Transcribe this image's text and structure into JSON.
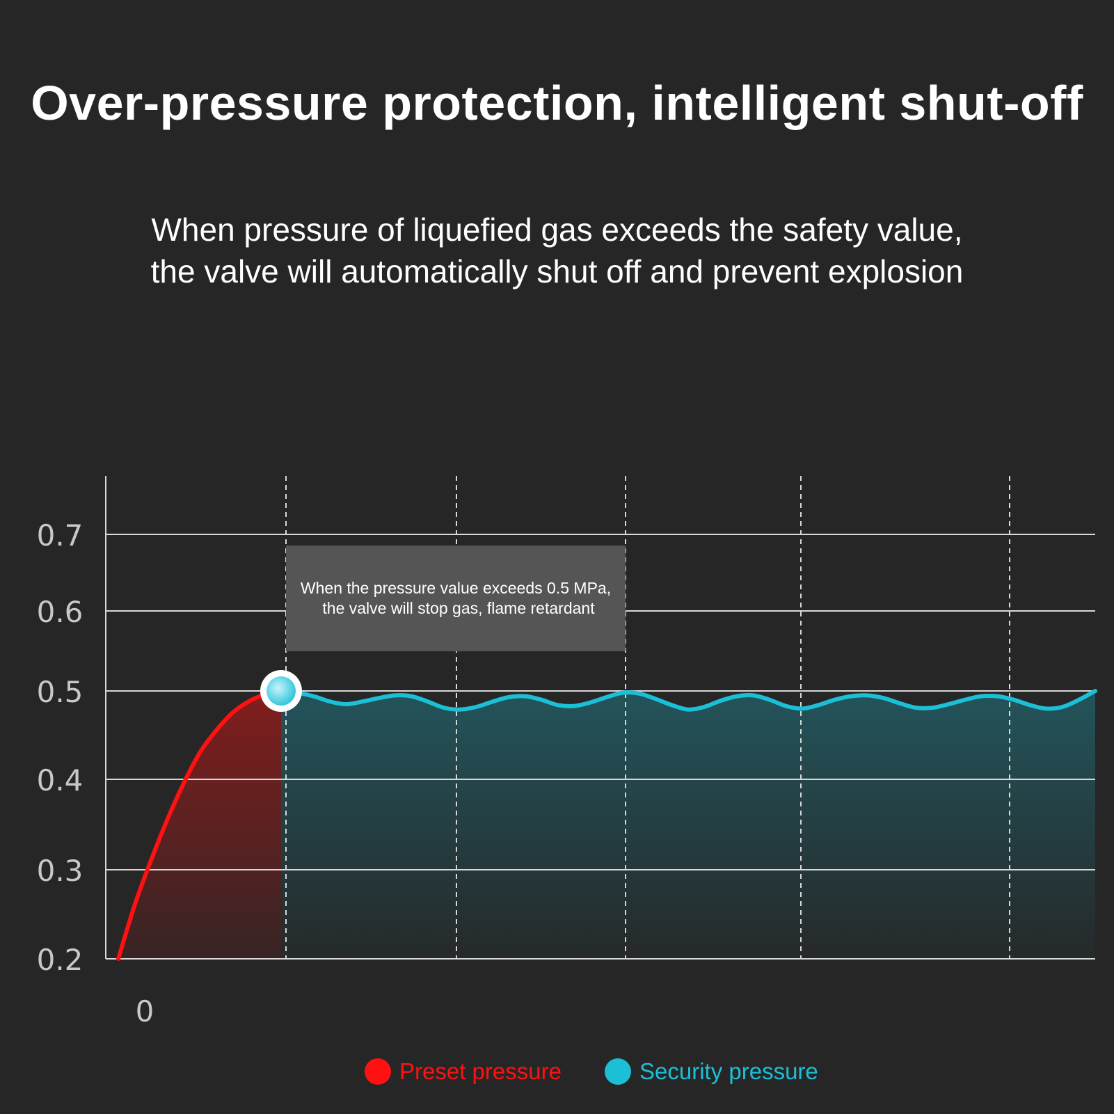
{
  "title": "Over-pressure protection, intelligent shut-off",
  "subtitle": {
    "line1": "When pressure of liquefied gas exceeds the safety value,",
    "line2": "the valve will automatically shut off and prevent explosion"
  },
  "colors": {
    "background": "#262626",
    "preset": "#ff1111",
    "security": "#1bbfd6",
    "annotation_bg": "#555555"
  },
  "chart_data": {
    "type": "line",
    "title": "",
    "xlabel": "",
    "ylabel": "",
    "ylim": [
      0.2,
      0.7
    ],
    "y_ticks": [
      0.2,
      0.3,
      0.4,
      0.5,
      0.6,
      0.7
    ],
    "y_tick_labels": [
      "0.2",
      "0.3",
      "0.4",
      "0.5",
      "0.6",
      "0.7"
    ],
    "x_tick_labels": [
      "0"
    ],
    "grid": {
      "horizontal": "solid",
      "vertical": "dashed"
    },
    "legend_position": "bottom",
    "series": [
      {
        "name": "Preset pressure",
        "color": "#ff1111",
        "x": [
          0,
          1,
          2,
          3,
          4,
          5,
          6,
          7,
          8,
          9,
          10
        ],
        "values": [
          0.2,
          0.26,
          0.31,
          0.355,
          0.395,
          0.43,
          0.455,
          0.475,
          0.488,
          0.496,
          0.5
        ]
      },
      {
        "name": "Security pressure",
        "color": "#1bbfd6",
        "x": [
          10,
          11,
          12,
          13,
          14,
          15,
          16,
          17,
          18,
          19,
          20,
          21,
          22,
          23,
          24,
          25,
          26,
          27,
          28,
          29,
          30,
          31,
          32,
          33,
          34,
          35,
          36,
          37,
          38,
          39,
          40,
          41,
          42,
          43,
          44,
          45,
          46,
          47,
          48,
          49,
          50,
          51,
          52,
          53,
          54,
          55,
          56,
          57,
          58,
          59,
          60
        ],
        "values": [
          0.5,
          0.498,
          0.494,
          0.488,
          0.485,
          0.488,
          0.492,
          0.495,
          0.494,
          0.488,
          0.481,
          0.479,
          0.482,
          0.488,
          0.493,
          0.494,
          0.49,
          0.484,
          0.483,
          0.487,
          0.493,
          0.498,
          0.497,
          0.491,
          0.484,
          0.479,
          0.482,
          0.489,
          0.494,
          0.495,
          0.49,
          0.483,
          0.48,
          0.484,
          0.49,
          0.494,
          0.495,
          0.492,
          0.486,
          0.481,
          0.481,
          0.485,
          0.49,
          0.494,
          0.494,
          0.49,
          0.484,
          0.48,
          0.482,
          0.49,
          0.5
        ]
      }
    ],
    "threshold_marker": {
      "x": 10,
      "y": 0.5
    },
    "annotation": {
      "line1": "When the pressure value exceeds 0.5 MPa,",
      "line2": "the valve will stop gas, flame retardant"
    }
  },
  "legend": [
    {
      "label": "Preset pressure",
      "color": "#ff1111"
    },
    {
      "label": "Security pressure",
      "color": "#1bbfd6"
    }
  ]
}
